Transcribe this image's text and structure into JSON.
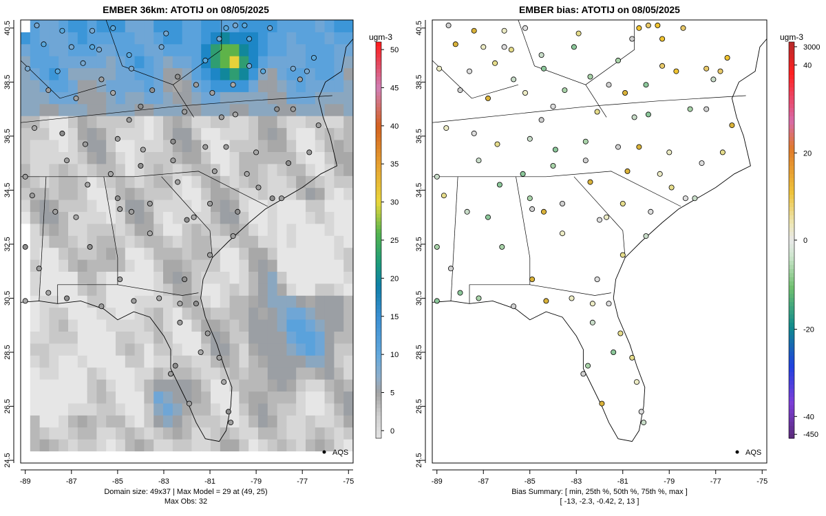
{
  "chart_data": [
    {
      "type": "heatmap",
      "title": "EMBER 36km: ATOTIJ on 08/05/2025",
      "x_ticks": [
        "-89",
        "-87",
        "-85",
        "-83",
        "-81",
        "-79",
        "-77",
        "-75"
      ],
      "y_ticks": [
        "24.5",
        "26.5",
        "28.5",
        "30.5",
        "32.5",
        "34.5",
        "36.5",
        "38.5",
        "40.5"
      ],
      "xlim": [
        -89.2,
        -74.8
      ],
      "ylim": [
        24.4,
        40.8
      ],
      "colorbar": {
        "unit": "ugm-3",
        "ticks": [
          "0",
          "5",
          "10",
          "15",
          "20",
          "25",
          "30",
          "35",
          "40",
          "45",
          "50"
        ],
        "range": [
          -1,
          51
        ]
      },
      "legend": {
        "label": "AQS",
        "position": "bottom-right"
      },
      "footer": [
        "Domain size: 49x37 | Max Model = 29 at (49, 25)",
        "Max Obs: 32"
      ]
    },
    {
      "type": "scatter",
      "title": "EMBER bias: ATOTIJ on 08/05/2025",
      "x_ticks": [
        "-89",
        "-87",
        "-85",
        "-83",
        "-81",
        "-79",
        "-77",
        "-75"
      ],
      "y_ticks": [
        "24.5",
        "26.5",
        "28.5",
        "30.5",
        "32.5",
        "34.5",
        "36.5",
        "38.5",
        "40.5"
      ],
      "xlim": [
        -89.2,
        -74.8
      ],
      "ylim": [
        24.4,
        40.8
      ],
      "colorbar": {
        "unit": "ugm-3",
        "ticks": [
          "3000",
          "40",
          "20",
          "0",
          "-20",
          "-40",
          "-450"
        ]
      },
      "legend": {
        "label": "AQS",
        "position": "bottom-right"
      },
      "footer": [
        "Bias Summary: [ min, 25th %, 50th %, 75th %, max ]",
        "[ -13,   -2.3,   -0.42,   2,   13 ]"
      ]
    }
  ]
}
